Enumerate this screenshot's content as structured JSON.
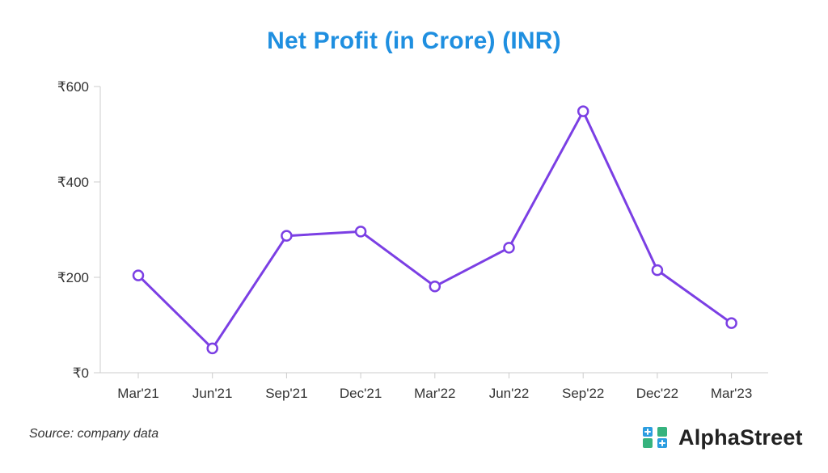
{
  "chart_data": {
    "type": "line",
    "title": "Net Profit (in Crore) (INR)",
    "categories": [
      "Mar'21",
      "Jun'21",
      "Sep'21",
      "Dec'21",
      "Mar'22",
      "Jun'22",
      "Sep'22",
      "Dec'22",
      "Mar'23"
    ],
    "series": [
      {
        "values": [
          204,
          51,
          287,
          296,
          181,
          262,
          548,
          215,
          104
        ]
      }
    ],
    "ylim": [
      0,
      600
    ],
    "yticks": [
      0,
      200,
      400,
      600
    ],
    "ytick_labels": [
      "₹0",
      "₹200",
      "₹400",
      "₹600"
    ],
    "grid": false,
    "line_color": "#7b3fe4",
    "title_color": "#1f8fe0"
  },
  "footer": {
    "source": "Source: company data",
    "brand": "AlphaStreet"
  }
}
